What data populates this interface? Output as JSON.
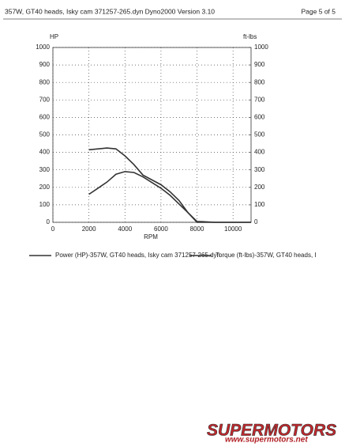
{
  "header": {
    "title": "357W, GT40 heads, Isky cam 371257-265.dyn  Dyno2000  Version 3.10",
    "page": "Page 5 of 5"
  },
  "chart_data": {
    "type": "line",
    "y_label": "HP",
    "y2_label": "ft-lbs",
    "x_label": "RPM",
    "x": [
      2000,
      3000,
      3500,
      4000,
      4500,
      5000,
      6000,
      6500,
      7000,
      7500,
      8000,
      9000,
      10000,
      11000
    ],
    "series": [
      {
        "name": "Power (HP)-357W, GT40 heads, Isky cam 371257-265.dyn",
        "color": "#333333",
        "values": [
          160,
          230,
          275,
          290,
          285,
          260,
          195,
          155,
          105,
          55,
          5,
          0,
          0,
          0
        ]
      },
      {
        "name": "Torque (ft-lbs)-357W, GT40 heads, I",
        "color": "#333333",
        "axis": "y2",
        "values": [
          415,
          425,
          420,
          380,
          330,
          270,
          215,
          175,
          125,
          55,
          0,
          0,
          0,
          0
        ]
      }
    ],
    "xlim": [
      0,
      11000
    ],
    "xticks": [
      0,
      2000,
      4000,
      6000,
      8000,
      10000
    ],
    "ylim": [
      0,
      1000
    ],
    "yticks": [
      0,
      100,
      200,
      300,
      400,
      500,
      600,
      700,
      800,
      900,
      1000
    ],
    "y2lim": [
      0,
      1000
    ],
    "y2ticks": [
      0,
      100,
      200,
      300,
      400,
      500,
      600,
      700,
      800,
      900,
      1000
    ],
    "grid": true
  },
  "watermark": {
    "brand": "SUPERMOTORS",
    "url": "www.supermotors.net"
  }
}
